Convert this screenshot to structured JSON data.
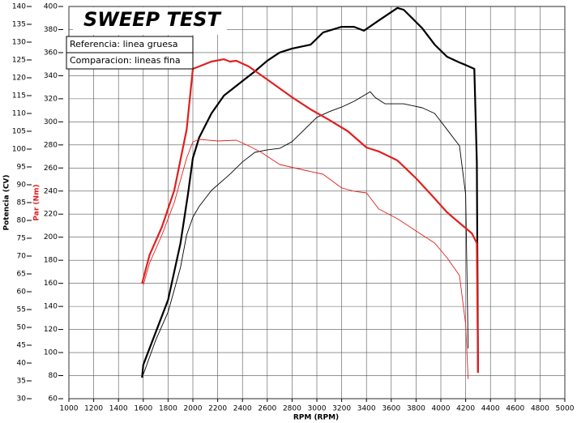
{
  "chart_data": {
    "type": "line",
    "title": "SWEEP TEST",
    "notes": [
      "Referencia: linea gruesa",
      "Comparacion: lineas fina"
    ],
    "xlabel": "RPM (RPM)",
    "ylabel": "Potencia (CV)",
    "y2label": "Par (Nm)",
    "xlim": [
      1000,
      5000
    ],
    "xticks": [
      1000,
      1200,
      1400,
      1600,
      1800,
      2000,
      2200,
      2400,
      2600,
      2800,
      3000,
      3200,
      3400,
      3600,
      3800,
      4000,
      4200,
      4400,
      4600,
      4800,
      5000
    ],
    "ylim": [
      30,
      140
    ],
    "yticks": [
      30,
      35,
      40,
      45,
      50,
      55,
      60,
      65,
      70,
      75,
      80,
      85,
      90,
      95,
      100,
      105,
      110,
      115,
      120,
      125,
      130,
      135,
      140
    ],
    "y2lim": [
      60,
      400
    ],
    "y2ticks": [
      60,
      80,
      100,
      120,
      140,
      160,
      180,
      200,
      220,
      240,
      260,
      280,
      300,
      320,
      340,
      360,
      380,
      400
    ],
    "grid": true,
    "series": [
      {
        "color": "#000000",
        "width": 2.2,
        "axis": "y",
        "x": [
          1590,
          1600,
          1700,
          1800,
          1900,
          1960,
          2000,
          2050,
          2150,
          2250,
          2400,
          2500,
          2600,
          2700,
          2800,
          2950,
          3050,
          3200,
          3300,
          3380,
          3500,
          3650,
          3700,
          3850,
          3950,
          4050,
          4150,
          4200,
          4270,
          4290,
          4300
        ],
        "values": [
          35.9,
          39.5,
          48.6,
          57.7,
          73.6,
          87.3,
          97.5,
          103.2,
          110.0,
          115.0,
          119.1,
          121.8,
          124.8,
          127.1,
          128.2,
          129.3,
          132.7,
          134.3,
          134.3,
          133.2,
          136.1,
          139.6,
          139.1,
          133.9,
          129.3,
          125.9,
          124.3,
          123.6,
          122.5,
          96.4,
          37.3
        ]
      },
      {
        "color": "#000000",
        "width": 0.9,
        "axis": "y",
        "x": [
          1600,
          1700,
          1800,
          1900,
          1950,
          2000,
          2050,
          2150,
          2300,
          2400,
          2500,
          2600,
          2700,
          2800,
          2900,
          3000,
          3100,
          3200,
          3300,
          3430,
          3470,
          3550,
          3700,
          3850,
          3950,
          4050,
          4150,
          4200,
          4220
        ],
        "values": [
          36.8,
          46.4,
          54.3,
          66.8,
          75.9,
          80.9,
          83.9,
          88.4,
          93.0,
          96.4,
          99.1,
          99.8,
          100.2,
          102.1,
          105.5,
          108.9,
          110.5,
          111.8,
          113.4,
          116.1,
          114.5,
          112.7,
          112.7,
          111.6,
          110.0,
          105.5,
          100.9,
          87.3,
          44.1
        ]
      },
      {
        "color": "#e02020",
        "width": 2.2,
        "axis": "y2",
        "x": [
          1590,
          1650,
          1750,
          1850,
          1950,
          2000,
          2050,
          2150,
          2250,
          2300,
          2350,
          2450,
          2600,
          2800,
          2950,
          3100,
          3250,
          3400,
          3500,
          3650,
          3800,
          3950,
          4050,
          4150,
          4250,
          4290,
          4300
        ],
        "values": [
          159.8,
          184.3,
          208.9,
          240.5,
          293.2,
          345.9,
          348.0,
          352.2,
          354.3,
          352.2,
          352.9,
          348.0,
          336.7,
          321.3,
          310.8,
          301.6,
          291.8,
          277.8,
          274.3,
          266.5,
          251.1,
          233.5,
          221.6,
          212.4,
          203.3,
          194.9,
          82.5
        ]
      },
      {
        "color": "#e02020",
        "width": 0.9,
        "axis": "y2",
        "x": [
          1600,
          1650,
          1750,
          1850,
          1950,
          2000,
          2050,
          2200,
          2350,
          2450,
          2550,
          2700,
          2900,
          3050,
          3200,
          3300,
          3400,
          3500,
          3650,
          3800,
          3950,
          4050,
          4150,
          4200,
          4220
        ],
        "values": [
          158.4,
          177.3,
          201.9,
          230.0,
          268.6,
          282.7,
          284.8,
          283.4,
          284.1,
          279.2,
          273.6,
          263.0,
          258.1,
          254.6,
          242.7,
          239.8,
          238.4,
          224.4,
          216.0,
          205.4,
          194.9,
          182.2,
          166.8,
          124.6,
          76.9
        ]
      }
    ]
  }
}
